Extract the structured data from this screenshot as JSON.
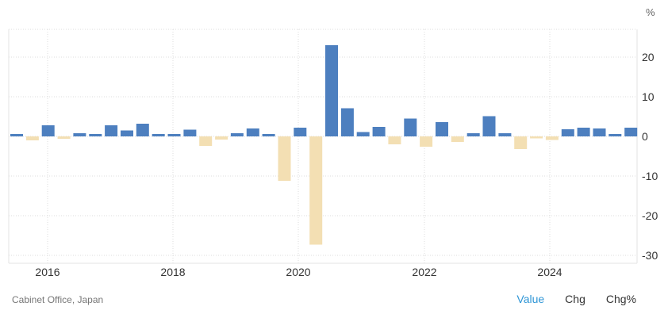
{
  "chart_data": {
    "type": "bar",
    "title": "",
    "unit": "%",
    "xlabel": "",
    "ylabel": "%",
    "ylim": [
      -32,
      27
    ],
    "yticks": [
      20,
      10,
      0,
      -10,
      -20,
      -30
    ],
    "xticks": [
      "2016",
      "2018",
      "2020",
      "2022",
      "2024"
    ],
    "grid": true,
    "legend": "none",
    "colors": {
      "positive": "#4d7fbf",
      "negative": "#f3dfb3"
    },
    "categories": [
      "Q3 2015",
      "Q4 2015",
      "Q1 2016",
      "Q2 2016",
      "Q3 2016",
      "Q4 2016",
      "Q1 2017",
      "Q2 2017",
      "Q3 2017",
      "Q4 2017",
      "Q1 2018",
      "Q2 2018",
      "Q3 2018",
      "Q4 2018",
      "Q1 2019",
      "Q2 2019",
      "Q3 2019",
      "Q4 2019",
      "Q1 2020",
      "Q2 2020",
      "Q3 2020",
      "Q4 2020",
      "Q1 2021",
      "Q2 2021",
      "Q3 2021",
      "Q4 2021",
      "Q1 2022",
      "Q2 2022",
      "Q3 2022",
      "Q4 2022",
      "Q1 2023",
      "Q2 2023",
      "Q3 2023",
      "Q4 2023",
      "Q1 2024",
      "Q2 2024",
      "Q3 2024",
      "Q4 2024",
      "Q1 2025",
      "Q2 2025"
    ],
    "values": [
      0.6,
      -1.0,
      2.8,
      -0.6,
      0.8,
      0.6,
      2.8,
      1.5,
      3.2,
      0.6,
      0.6,
      1.7,
      -2.4,
      -0.8,
      0.8,
      2.0,
      0.6,
      -11.2,
      2.2,
      -27.3,
      23.0,
      7.1,
      1.1,
      2.4,
      -2.0,
      4.5,
      -2.6,
      3.6,
      -1.4,
      0.8,
      5.1,
      0.8,
      -3.2,
      -0.5,
      -0.9,
      1.8,
      2.2,
      2.0,
      0.6,
      2.2
    ]
  },
  "footer": {
    "source": "Cabinet Office, Japan",
    "tabs": [
      {
        "label": "Value",
        "active": true
      },
      {
        "label": "Chg",
        "active": false
      },
      {
        "label": "Chg%",
        "active": false
      }
    ]
  }
}
